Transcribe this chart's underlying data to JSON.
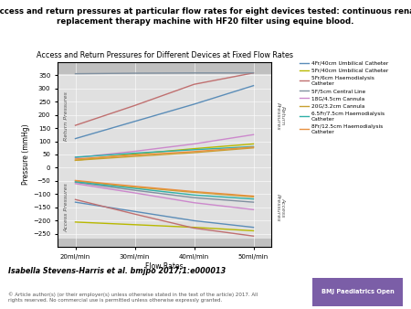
{
  "title_main": "Access and return pressures at particular flow rates for eight devices tested: continuous renal\nreplacement therapy machine with HF20 filter using equine blood.",
  "chart_title": "Access and Return Pressures for Different Devices at Fixed Flow Rates",
  "xlabel": "Flow Rates",
  "ylabel": "Pressure (mmHg)",
  "flow_rates": [
    20,
    30,
    40,
    50
  ],
  "flow_labels": [
    "20ml/min",
    "30ml/min",
    "40ml/min",
    "50ml/min"
  ],
  "ylim": [
    -300,
    400
  ],
  "devices": [
    {
      "label": "4Fr/40cm Umbilical Catheter",
      "color": "#5B8DB8",
      "return_pressures": [
        110,
        175,
        240,
        310
      ],
      "access_pressures": [
        -130,
        -165,
        -200,
        -225
      ]
    },
    {
      "label": "5Fr/40cm Umbilical Catheter",
      "color": "#B8B800",
      "return_pressures": [
        28,
        52,
        72,
        90
      ],
      "access_pressures": [
        -205,
        -215,
        -225,
        -238
      ]
    },
    {
      "label": "5Fr/6cm Haemodialysis\nCatheter",
      "color": "#C07070",
      "return_pressures": [
        160,
        235,
        315,
        358
      ],
      "access_pressures": [
        -120,
        -175,
        -228,
        -258
      ]
    },
    {
      "label": "5F/5cm Central Line",
      "color": "#8090A0",
      "return_pressures": [
        355,
        357,
        358,
        358
      ],
      "access_pressures": [
        -55,
        -85,
        -113,
        -130
      ]
    },
    {
      "label": "18G/4.5cm Cannula",
      "color": "#CC88CC",
      "return_pressures": [
        38,
        62,
        90,
        125
      ],
      "access_pressures": [
        -60,
        -95,
        -132,
        -158
      ]
    },
    {
      "label": "20G/3.2cm Cannula",
      "color": "#C8A030",
      "return_pressures": [
        28,
        43,
        57,
        75
      ],
      "access_pressures": [
        -50,
        -73,
        -93,
        -110
      ]
    },
    {
      "label": "6.5Fr/7.5cm Haemodialysis\nCatheter",
      "color": "#30B0A8",
      "return_pressures": [
        40,
        55,
        68,
        80
      ],
      "access_pressures": [
        -53,
        -78,
        -103,
        -118
      ]
    },
    {
      "label": "8Fr/12.5cm Haemodialysis\nCatheter",
      "color": "#E89040",
      "return_pressures": [
        33,
        48,
        61,
        78
      ],
      "access_pressures": [
        -48,
        -70,
        -90,
        -107
      ]
    }
  ],
  "author_text": "Isabella Stevens-Harris et al. bmjpo 2017;1:e000013",
  "copyright_text": "© Article author(s) (or their employer(s) unless otherwise stated in the text of the article) 2017. All\nrights reserved. No commercial use is permitted unless otherwise expressly granted.",
  "bmj_box_color": "#7B5EA7",
  "bmj_box_text": "BMJ Paediatrics Open",
  "plot_bg_color": "#e0e0e0",
  "shaded_extreme_color": "#c0c0c0"
}
